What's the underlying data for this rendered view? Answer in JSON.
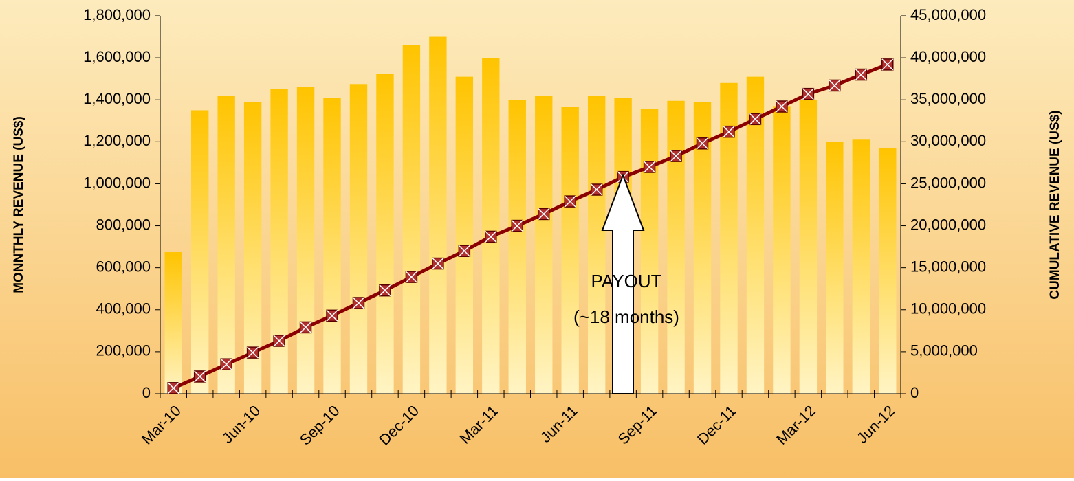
{
  "chart_data": {
    "type": "bar",
    "categories": [
      "Mar-10",
      null,
      null,
      "Jun-10",
      null,
      null,
      "Sep-10",
      null,
      null,
      "Dec-10",
      null,
      null,
      "Mar-11",
      null,
      null,
      "Jun-11",
      null,
      null,
      "Sep-11",
      null,
      null,
      "Dec-11",
      null,
      null,
      "Mar-12",
      null,
      null,
      "Jun-12"
    ],
    "series": [
      {
        "type": "bar",
        "color": "#ffc400",
        "values": [
          674000,
          1350000,
          1420000,
          1390000,
          1450000,
          1460000,
          1410000,
          1475000,
          1525000,
          1660000,
          1700000,
          1510000,
          1600000,
          1400000,
          1420000,
          1365000,
          1420000,
          1410000,
          1355000,
          1395000,
          1390000,
          1480000,
          1510000,
          1370000,
          1400000,
          1200000,
          1210000,
          1170000
        ]
      },
      {
        "type": "line",
        "axis": "y2",
        "color": "#8b0000",
        "values": [
          670000,
          2050000,
          3500000,
          4900000,
          6300000,
          7900000,
          9300000,
          10800000,
          12300000,
          13900000,
          15500000,
          17000000,
          18700000,
          20000000,
          21400000,
          22900000,
          24300000,
          25800000,
          27000000,
          28300000,
          29800000,
          31200000,
          32700000,
          34200000,
          35700000,
          36700000,
          38000000,
          39200000
        ]
      }
    ],
    "ylabel": "MONNTHLY REVENUE (US$)",
    "y2label": "CUMULATIVE REVENUE (US$)",
    "ylim": [
      0,
      1800000
    ],
    "yticks": [
      0,
      {
        "value": 200000,
        "label": "200,000"
      },
      {
        "value": 400000,
        "label": "400,000"
      },
      {
        "value": 600000,
        "label": "600,000"
      },
      {
        "value": 800000,
        "label": "800,000"
      },
      {
        "value": 1000000,
        "label": "1,000,000"
      },
      {
        "value": 1200000,
        "label": "1,200,000"
      },
      {
        "value": 1400000,
        "label": "1,400,000"
      },
      {
        "value": 1600000,
        "label": "1,600,000"
      },
      {
        "value": 1800000,
        "label": "1,800,000"
      }
    ],
    "y2lim": [
      0,
      45000000
    ],
    "y2ticks": [
      0,
      {
        "value": 5000000,
        "label": "5,000,000"
      },
      {
        "value": 10000000,
        "label": "10,000,000"
      },
      {
        "value": 15000000,
        "label": "15,000,000"
      },
      {
        "value": 20000000,
        "label": "20,000,000"
      },
      {
        "value": 25000000,
        "label": "25,000,000"
      },
      {
        "value": 30000000,
        "label": "30,000,000"
      },
      {
        "value": 35000000,
        "label": "35,000,000"
      },
      {
        "value": 40000000,
        "label": "40,000,000"
      },
      {
        "value": 45000000,
        "label": "45,000,000"
      }
    ],
    "annotations": [
      "PAYOUT",
      "(~18 months)"
    ]
  }
}
